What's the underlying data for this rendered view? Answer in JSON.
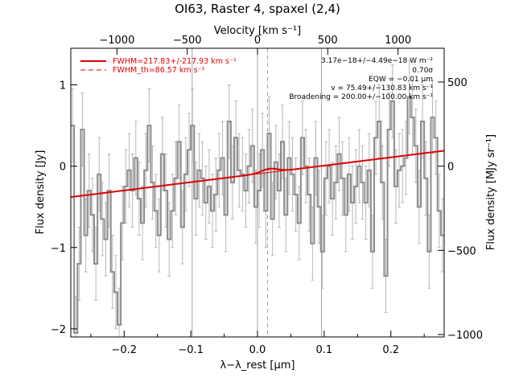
{
  "chart_data": {
    "type": "line",
    "title": "OI63, Raster 4, spaxel (2,4)",
    "xlabel": "λ−λ_rest [μm]",
    "ylabel": "Flux density [Jy]",
    "x2label": "Velocity [km s⁻¹]",
    "y2label": "Flux density [MJy sr⁻¹]",
    "xlim": [
      -0.28,
      0.28
    ],
    "ylim": [
      -2.1,
      1.45
    ],
    "x_ticks": [
      -0.2,
      -0.1,
      0.0,
      0.1,
      0.2
    ],
    "x_tick_labels": [
      "−0.2",
      "−0.1",
      "0.0",
      "0.1",
      "0.2"
    ],
    "y_ticks": [
      -2,
      -1,
      0,
      1
    ],
    "y_tick_labels": [
      "−2",
      "−1",
      "0",
      "1"
    ],
    "velocity_ticks": [
      -1000,
      -500,
      0,
      500,
      1000
    ],
    "velocity_tick_labels": [
      "−1000",
      "−500",
      "0",
      "500",
      "1000"
    ],
    "right_axis_ticks": [
      -1000,
      -500,
      0,
      500
    ],
    "right_axis_tick_labels": [
      "−1000",
      "−500",
      "0",
      "500"
    ],
    "right_axis_factor": 483,
    "vertical_lines_solid": [
      -0.098,
      0.0,
      0.096
    ],
    "vertical_line_dashed": 0.015,
    "grid": false,
    "legend_position": "top-left",
    "legend": [
      {
        "label": "FWHM=217.83+/-217.93 km s⁻¹",
        "style": "solid"
      },
      {
        "label": "FWHM_th=86.57 km s⁻¹",
        "style": "dashed"
      }
    ],
    "annotations": [
      "3.17e−18+/−4.49e−18 W m⁻²",
      "0.70σ",
      "EQW = −0.01 μm",
      "v = 75.49+/−130.83 km s⁻¹",
      "Broadening = 200.00+/−100.00 km s⁻¹"
    ],
    "colors": {
      "data": "#8c8c8c",
      "error": "#b8b8b8",
      "fit": "#e00000",
      "vline": "#a0a0a0"
    },
    "fit": {
      "continuum_at_xmin": -0.38,
      "continuum_at_xmax": 0.19,
      "line_center": 0.018,
      "line_peak": 0.045,
      "line_sigma": 0.012
    },
    "series": [
      {
        "name": "data",
        "x": [
          -0.28,
          -0.275,
          -0.27,
          -0.265,
          -0.26,
          -0.255,
          -0.25,
          -0.245,
          -0.24,
          -0.235,
          -0.23,
          -0.225,
          -0.22,
          -0.215,
          -0.21,
          -0.205,
          -0.2,
          -0.195,
          -0.19,
          -0.185,
          -0.18,
          -0.175,
          -0.17,
          -0.165,
          -0.16,
          -0.155,
          -0.15,
          -0.145,
          -0.14,
          -0.135,
          -0.13,
          -0.125,
          -0.12,
          -0.115,
          -0.11,
          -0.105,
          -0.1,
          -0.095,
          -0.09,
          -0.085,
          -0.08,
          -0.075,
          -0.07,
          -0.065,
          -0.06,
          -0.055,
          -0.05,
          -0.045,
          -0.04,
          -0.035,
          -0.03,
          -0.025,
          -0.02,
          -0.015,
          -0.01,
          -0.005,
          0.0,
          0.005,
          0.01,
          0.015,
          0.02,
          0.025,
          0.03,
          0.035,
          0.04,
          0.045,
          0.05,
          0.055,
          0.06,
          0.065,
          0.07,
          0.075,
          0.08,
          0.085,
          0.09,
          0.095,
          0.1,
          0.105,
          0.11,
          0.115,
          0.12,
          0.125,
          0.13,
          0.135,
          0.14,
          0.145,
          0.15,
          0.155,
          0.16,
          0.165,
          0.17,
          0.175,
          0.18,
          0.185,
          0.19,
          0.195,
          0.2,
          0.205,
          0.21,
          0.215,
          0.22,
          0.225,
          0.23,
          0.235,
          0.24,
          0.245,
          0.25,
          0.255,
          0.26,
          0.265,
          0.27,
          0.275
        ],
        "y": [
          0.5,
          -2.05,
          -1.2,
          0.45,
          -0.85,
          -0.3,
          -0.6,
          -1.2,
          -0.1,
          -0.65,
          -0.9,
          -0.3,
          -1.3,
          -1.55,
          -1.95,
          -0.7,
          -0.25,
          -0.05,
          -0.3,
          0.1,
          -0.4,
          -0.7,
          -0.05,
          0.5,
          -0.2,
          -0.55,
          -0.85,
          0.15,
          -0.3,
          -0.9,
          -0.55,
          -0.15,
          0.3,
          -0.75,
          -0.1,
          0.2,
          0.5,
          -0.4,
          -0.05,
          -0.15,
          -0.45,
          -0.25,
          -0.55,
          -0.35,
          -0.05,
          0.1,
          -0.6,
          0.55,
          -0.2,
          0.35,
          -0.05,
          -0.1,
          -0.3,
          0.0,
          0.25,
          -0.5,
          -0.3,
          0.2,
          -0.55,
          0.4,
          -0.65,
          0.05,
          -0.3,
          0.3,
          -0.6,
          0.1,
          -0.1,
          -0.35,
          -0.7,
          0.35,
          0.0,
          -0.35,
          -0.95,
          0.1,
          -0.5,
          -1.05,
          -0.15,
          0.0,
          -0.4,
          -0.2,
          0.15,
          -0.15,
          -0.6,
          -0.1,
          -0.45,
          -0.25,
          0.0,
          -0.2,
          -0.45,
          -0.05,
          -1.05,
          0.35,
          0.55,
          -0.2,
          -1.35,
          0.45,
          0.8,
          -0.25,
          -0.05,
          0.0,
          0.1,
          0.85,
          0.6,
          0.25,
          -0.5,
          0.55,
          -0.15,
          -1.05,
          0.6,
          0.35,
          -0.55,
          -0.85
        ],
        "err": 0.45
      }
    ]
  }
}
